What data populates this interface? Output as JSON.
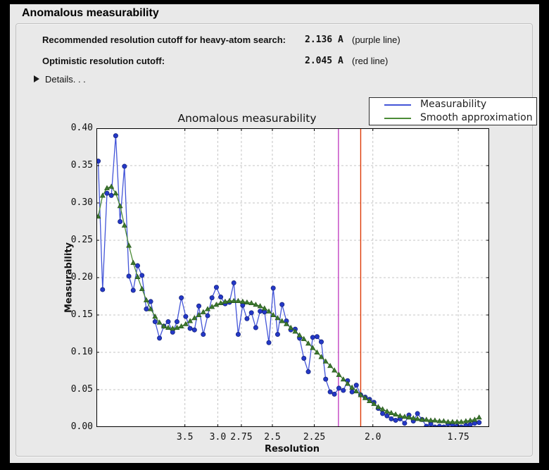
{
  "window": {
    "title": "Anomalous measurability"
  },
  "summary": {
    "rows": [
      {
        "label": "Recommended resolution cutoff for heavy-atom search:",
        "value": "2.136 A",
        "note": "(purple line)"
      },
      {
        "label": "Optimistic resolution cutoff:",
        "value": "2.045 A",
        "note": "(red line)"
      }
    ],
    "details_label": "Details. . ."
  },
  "chart_data": {
    "type": "line",
    "title": "Anomalous measurability",
    "xlabel": "Resolution",
    "ylabel": "Measurability",
    "ylim": [
      0.0,
      0.4
    ],
    "ytick_step": 0.05,
    "grid": true,
    "x_axis": {
      "scale": "inverse_d_squared",
      "s_min": 0.0024,
      "s_max": 0.3542,
      "tick_resolutions": [
        3.5,
        3.0,
        2.75,
        2.5,
        2.25,
        2.0,
        1.75
      ],
      "tick_labels": [
        "3.5",
        "3.0",
        "2.75",
        "2.5",
        "2.25",
        "2.0",
        "1.75"
      ]
    },
    "legend": {
      "position": "upper-right-outside",
      "entries": [
        "Measurability",
        "Smooth approximation"
      ]
    },
    "vlines": [
      {
        "resolution_A": 2.136,
        "color": "#c344c3",
        "meaning": "recommended cutoff (purple line)"
      },
      {
        "resolution_A": 2.045,
        "color": "#dd3a06",
        "meaning": "optimistic cutoff (red line)"
      }
    ],
    "resolution_A": [
      15.811,
      11.235,
      9.191,
      7.966,
      7.129,
      6.51,
      6.028,
      5.64,
      5.318,
      5.046,
      4.811,
      4.607,
      4.427,
      4.266,
      4.121,
      3.991,
      3.872,
      3.762,
      3.662,
      3.57,
      3.484,
      3.404,
      3.329,
      3.259,
      3.193,
      3.131,
      3.073,
      3.017,
      2.965,
      2.915,
      2.868,
      2.823,
      2.78,
      2.738,
      2.699,
      2.661,
      2.625,
      2.59,
      2.557,
      2.525,
      2.494,
      2.464,
      2.435,
      2.407,
      2.38,
      2.354,
      2.329,
      2.305,
      2.281,
      2.258,
      2.236,
      2.215,
      2.194,
      2.173,
      2.154,
      2.134,
      2.115,
      2.097,
      2.079,
      2.062,
      2.045,
      2.028,
      2.012,
      1.996,
      1.981,
      1.966,
      1.951,
      1.937,
      1.923,
      1.909,
      1.895,
      1.882,
      1.869,
      1.857,
      1.844,
      1.832,
      1.82,
      1.809,
      1.797,
      1.786,
      1.775,
      1.764,
      1.753,
      1.743,
      1.732,
      1.722,
      1.712,
      1.702
    ],
    "series": [
      {
        "name": "Measurability",
        "marker": "circle",
        "marker_color": "#2438c8",
        "marker_edge": "#16247f",
        "line_color": "#4355d8",
        "values": [
          0.356,
          0.184,
          0.313,
          0.31,
          0.39,
          0.275,
          0.349,
          0.202,
          0.183,
          0.216,
          0.203,
          0.158,
          0.168,
          0.141,
          0.119,
          0.135,
          0.141,
          0.127,
          0.141,
          0.173,
          0.148,
          0.132,
          0.13,
          0.162,
          0.124,
          0.149,
          0.173,
          0.187,
          0.174,
          0.165,
          0.167,
          0.193,
          0.124,
          0.163,
          0.145,
          0.153,
          0.133,
          0.155,
          0.154,
          0.113,
          0.186,
          0.124,
          0.164,
          0.142,
          0.13,
          0.131,
          0.119,
          0.092,
          0.074,
          0.12,
          0.121,
          0.114,
          0.064,
          0.047,
          0.044,
          0.052,
          0.049,
          0.062,
          0.047,
          0.056,
          0.043,
          0.04,
          0.037,
          0.033,
          0.025,
          0.018,
          0.015,
          0.011,
          0.009,
          0.011,
          0.005,
          0.016,
          0.008,
          0.018,
          0.01,
          0.001,
          0.004,
          0.0,
          0.001,
          0.0,
          0.004,
          0.003,
          0.001,
          0.0,
          0.002,
          0.003,
          0.005,
          0.006
        ]
      },
      {
        "name": "Smooth approximation",
        "marker": "triangle",
        "marker_color": "#3c7a2e",
        "marker_edge": "#27541d",
        "line_color": "#4c8c37",
        "values": [
          0.282,
          0.31,
          0.32,
          0.322,
          0.313,
          0.296,
          0.27,
          0.243,
          0.22,
          0.201,
          0.185,
          0.17,
          0.158,
          0.148,
          0.14,
          0.135,
          0.133,
          0.132,
          0.133,
          0.135,
          0.138,
          0.142,
          0.146,
          0.15,
          0.154,
          0.158,
          0.161,
          0.164,
          0.166,
          0.168,
          0.169,
          0.169,
          0.169,
          0.168,
          0.167,
          0.166,
          0.164,
          0.162,
          0.159,
          0.155,
          0.15,
          0.146,
          0.142,
          0.138,
          0.133,
          0.128,
          0.123,
          0.118,
          0.112,
          0.106,
          0.1,
          0.094,
          0.088,
          0.082,
          0.076,
          0.07,
          0.064,
          0.058,
          0.053,
          0.048,
          0.043,
          0.039,
          0.035,
          0.031,
          0.027,
          0.024,
          0.021,
          0.019,
          0.017,
          0.015,
          0.014,
          0.013,
          0.012,
          0.011,
          0.01,
          0.01,
          0.009,
          0.009,
          0.008,
          0.008,
          0.007,
          0.007,
          0.007,
          0.007,
          0.008,
          0.009,
          0.01,
          0.013
        ]
      }
    ]
  },
  "colors": {
    "frame": "#000000",
    "panel_bg": "#e9e9e9",
    "plot_bg": "#ffffff",
    "grid": "#c4c4c4",
    "spine": "#000000",
    "text": "#111111",
    "legend_border": "#2c2c2c"
  }
}
